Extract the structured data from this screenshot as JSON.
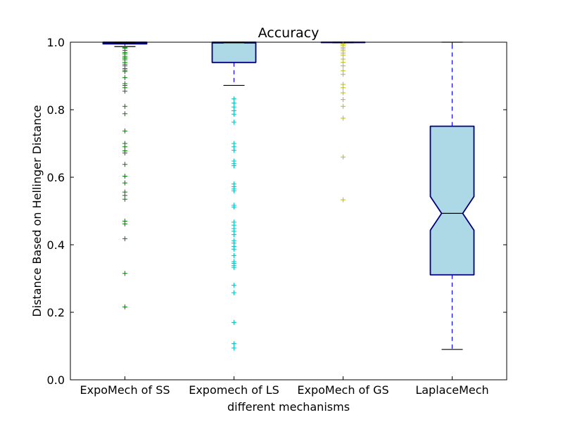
{
  "chart_data": {
    "type": "boxplot",
    "title": "Accuracy",
    "xlabel": "different mechanisms",
    "ylabel": "Distance Based on Hellinger Distance",
    "ylim": [
      0.0,
      1.0
    ],
    "yticks": [
      0.0,
      0.2,
      0.4,
      0.6,
      0.8,
      1.0
    ],
    "ytick_labels": [
      "0.0",
      "0.2",
      "0.4",
      "0.6",
      "0.8",
      "1.0"
    ],
    "grid": false,
    "notched": true,
    "box_fill": "#add8e6",
    "box_edge": "#000080",
    "series": [
      {
        "category": "ExpoMech of SS",
        "whisker_low": 0.987,
        "q1": 0.995,
        "median": 0.998,
        "q3": 1.0,
        "whisker_high": 1.0,
        "flier_color": "#008000",
        "outliers": [
          0.985,
          0.982,
          0.976,
          0.97,
          0.965,
          0.958,
          0.953,
          0.948,
          0.94,
          0.935,
          0.93,
          0.922,
          0.917,
          0.913,
          0.895,
          0.877,
          0.872,
          0.865,
          0.855,
          0.81,
          0.788,
          0.737,
          0.7,
          0.69,
          0.678,
          0.672,
          0.638,
          0.603,
          0.583,
          0.556,
          0.546,
          0.535,
          0.47,
          0.462,
          0.418,
          0.315,
          0.216
        ]
      },
      {
        "category": "Expomech of LS",
        "whisker_low": 0.872,
        "q1": 0.94,
        "median": 0.998,
        "q3": 1.0,
        "whisker_high": 1.0,
        "flier_color": "#00bfbf",
        "outliers": [
          0.832,
          0.82,
          0.808,
          0.797,
          0.787,
          0.763,
          0.7,
          0.69,
          0.68,
          0.648,
          0.64,
          0.634,
          0.58,
          0.572,
          0.565,
          0.56,
          0.517,
          0.512,
          0.467,
          0.458,
          0.448,
          0.44,
          0.43,
          0.412,
          0.405,
          0.395,
          0.387,
          0.368,
          0.35,
          0.345,
          0.338,
          0.333,
          0.28,
          0.258,
          0.17,
          0.107,
          0.094
        ]
      },
      {
        "category": "ExpoMech of GS",
        "whisker_low": 0.998,
        "q1": 0.999,
        "median": 1.0,
        "q3": 1.0,
        "whisker_high": 1.0,
        "flier_color": "#bfbf00",
        "outliers": [
          0.995,
          0.99,
          0.985,
          0.98,
          0.975,
          0.968,
          0.962,
          0.95,
          0.94,
          0.93,
          0.915,
          0.905,
          0.875,
          0.865,
          0.85,
          0.83,
          0.81,
          0.775,
          0.66,
          0.533
        ]
      },
      {
        "category": "LaplaceMech",
        "whisker_low": 0.09,
        "q1": 0.311,
        "median": 0.493,
        "q3": 0.751,
        "whisker_high": 1.0,
        "notch_low": 0.443,
        "notch_high": 0.543,
        "flier_color": "#0000ff",
        "outliers": []
      }
    ]
  }
}
